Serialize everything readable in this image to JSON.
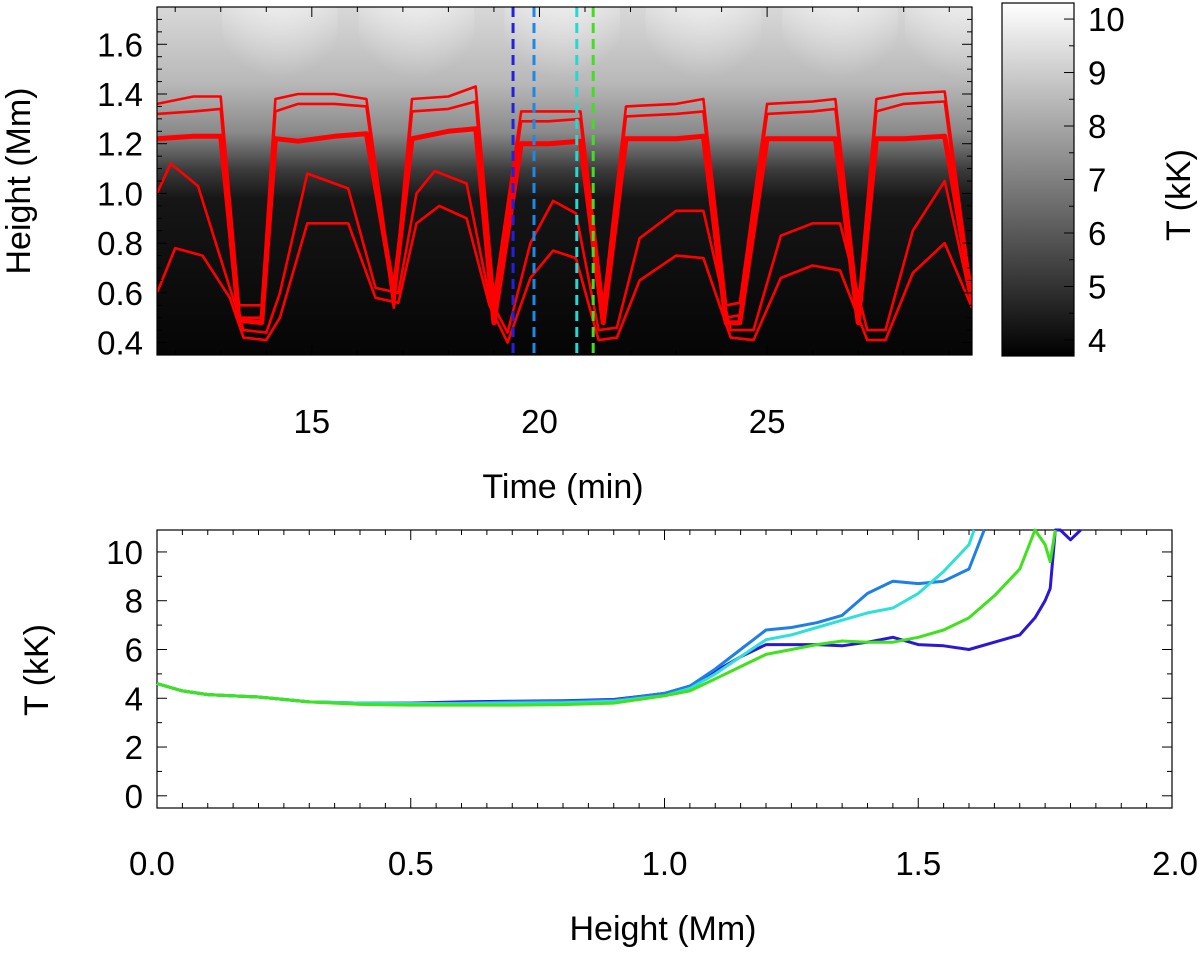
{
  "chart_data": [
    {
      "type": "heatmap",
      "xlabel": "Time (min)",
      "ylabel": "Height (Mm)",
      "xlim": [
        11.6,
        29.5
      ],
      "ylim": [
        0.35,
        1.75
      ],
      "x_ticks": [
        15,
        20,
        25
      ],
      "y_ticks": [
        0.4,
        0.6,
        0.8,
        1.0,
        1.2,
        1.4,
        1.6
      ],
      "colorbar": {
        "label": "T (kK)",
        "range": [
          3.7,
          10.3
        ],
        "ticks": [
          4,
          5,
          6,
          7,
          8,
          9,
          10
        ],
        "colormap": "grayscale"
      },
      "shock_period_min": 3.0,
      "shock_times_min": [
        13.0,
        16.0,
        19.2,
        22.3,
        25.3,
        28.0
      ],
      "vertical_markers": [
        {
          "x": 19.42,
          "color": "#2222dd"
        },
        {
          "x": 19.88,
          "color": "#1e88e5"
        },
        {
          "x": 20.82,
          "color": "#26d9d0"
        },
        {
          "x": 21.18,
          "color": "#44dd22"
        }
      ],
      "contour_color": "#ff0000",
      "contour_lines": [
        {
          "thick": false,
          "low": 0.41,
          "high": 1.37,
          "x": [
            11.6,
            12.4,
            13.0,
            13.4,
            13.9,
            14.2,
            14.7,
            15.5,
            16.2,
            16.8,
            17.2,
            18.0,
            18.6,
            19.0,
            19.6,
            20.2,
            20.9,
            21.4,
            21.9,
            23.0,
            23.6,
            24.1,
            24.4,
            25.0,
            26.0,
            26.5,
            27.0,
            27.4,
            28.0,
            28.9,
            29.5
          ],
          "y": [
            1.36,
            1.39,
            1.39,
            0.55,
            0.55,
            1.38,
            1.4,
            1.4,
            1.38,
            0.58,
            1.38,
            1.39,
            1.43,
            0.58,
            1.33,
            1.33,
            1.33,
            0.55,
            1.35,
            1.36,
            1.38,
            0.55,
            0.56,
            1.36,
            1.37,
            1.38,
            0.54,
            1.38,
            1.4,
            1.41,
            0.58
          ]
        },
        {
          "thick": false,
          "low": 0.46,
          "high": 1.33,
          "x": [
            11.6,
            12.4,
            13.0,
            13.4,
            13.9,
            14.2,
            14.7,
            15.5,
            16.2,
            16.8,
            17.2,
            18.0,
            18.6,
            19.0,
            19.6,
            20.2,
            20.9,
            21.4,
            21.9,
            23.0,
            23.6,
            24.1,
            24.4,
            25.0,
            26.0,
            26.5,
            27.0,
            27.4,
            28.0,
            28.9,
            29.5
          ],
          "y": [
            1.32,
            1.33,
            1.34,
            0.5,
            0.5,
            1.33,
            1.36,
            1.36,
            1.35,
            0.54,
            1.33,
            1.34,
            1.37,
            0.53,
            1.29,
            1.29,
            1.3,
            0.5,
            1.31,
            1.32,
            1.33,
            0.5,
            0.51,
            1.32,
            1.33,
            1.34,
            0.5,
            1.33,
            1.36,
            1.37,
            0.55
          ]
        },
        {
          "thick": true,
          "low": 0.48,
          "high": 1.22,
          "x": [
            11.6,
            12.4,
            13.0,
            13.4,
            13.9,
            14.2,
            14.7,
            15.5,
            16.2,
            16.8,
            17.2,
            18.0,
            18.6,
            19.0,
            19.6,
            20.2,
            20.9,
            21.4,
            21.9,
            23.0,
            23.6,
            24.1,
            24.4,
            25.0,
            26.0,
            26.5,
            27.0,
            27.4,
            28.0,
            28.9,
            29.5
          ],
          "y": [
            1.22,
            1.23,
            1.23,
            0.49,
            0.48,
            1.22,
            1.21,
            1.23,
            1.24,
            0.6,
            1.22,
            1.25,
            1.26,
            0.48,
            1.2,
            1.2,
            1.21,
            0.48,
            1.22,
            1.22,
            1.23,
            0.48,
            0.48,
            1.22,
            1.22,
            1.22,
            0.48,
            1.22,
            1.22,
            1.23,
            0.58
          ]
        },
        {
          "thick": false,
          "low": 0.44,
          "high": 1.05,
          "x": [
            11.6,
            11.9,
            12.5,
            13.2,
            13.5,
            14.0,
            14.3,
            14.9,
            15.8,
            16.4,
            16.9,
            17.3,
            17.7,
            18.4,
            18.9,
            19.3,
            19.8,
            20.3,
            20.8,
            21.3,
            21.7,
            22.2,
            23.0,
            23.6,
            24.2,
            24.7,
            25.3,
            26.0,
            26.6,
            27.2,
            27.6,
            28.2,
            28.9,
            29.5
          ],
          "y": [
            1.0,
            1.12,
            1.03,
            0.62,
            0.45,
            0.44,
            0.6,
            1.08,
            1.02,
            0.62,
            0.6,
            1.0,
            1.09,
            1.04,
            0.58,
            0.44,
            0.8,
            0.97,
            0.92,
            0.45,
            0.46,
            0.82,
            0.93,
            0.93,
            0.45,
            0.45,
            0.83,
            0.88,
            0.88,
            0.45,
            0.45,
            0.85,
            1.05,
            0.55
          ]
        },
        {
          "thick": false,
          "low": 0.4,
          "high": 0.93,
          "x": [
            11.6,
            12.0,
            12.6,
            13.2,
            13.5,
            14.0,
            14.3,
            14.9,
            15.8,
            16.4,
            16.9,
            17.3,
            17.8,
            18.4,
            18.9,
            19.3,
            19.8,
            20.3,
            20.8,
            21.3,
            21.7,
            22.2,
            23.0,
            23.6,
            24.2,
            24.7,
            25.3,
            26.0,
            26.6,
            27.2,
            27.6,
            28.2,
            28.9,
            29.5
          ],
          "y": [
            0.6,
            0.78,
            0.75,
            0.58,
            0.42,
            0.41,
            0.5,
            0.88,
            0.88,
            0.58,
            0.56,
            0.88,
            0.95,
            0.9,
            0.55,
            0.4,
            0.66,
            0.77,
            0.74,
            0.41,
            0.42,
            0.65,
            0.75,
            0.74,
            0.42,
            0.41,
            0.66,
            0.71,
            0.69,
            0.41,
            0.41,
            0.68,
            0.8,
            0.54
          ]
        }
      ]
    },
    {
      "type": "line",
      "xlabel": "Height (Mm)",
      "ylabel": "T (kK)",
      "xlim": [
        0.0,
        2.0
      ],
      "ylim": [
        -0.5,
        10.9
      ],
      "x_ticks": [
        0.0,
        0.5,
        1.0,
        1.5,
        2.0
      ],
      "x_tick_labels": [
        "0.0",
        "0.5",
        "1.0",
        "1.5",
        "2.0"
      ],
      "y_ticks": [
        0,
        2,
        4,
        6,
        8,
        10
      ],
      "series": [
        {
          "color": "#2b17d6",
          "x": [
            0.0,
            0.05,
            0.1,
            0.2,
            0.3,
            0.4,
            0.5,
            0.6,
            0.7,
            0.8,
            0.9,
            1.0,
            1.05,
            1.1,
            1.15,
            1.2,
            1.25,
            1.3,
            1.35,
            1.4,
            1.45,
            1.5,
            1.55,
            1.6,
            1.65,
            1.7,
            1.73,
            1.75,
            1.76,
            1.77,
            1.78,
            1.8,
            1.82
          ],
          "y": [
            4.6,
            4.3,
            4.15,
            4.05,
            3.85,
            3.8,
            3.8,
            3.85,
            3.88,
            3.9,
            3.95,
            4.2,
            4.5,
            5.1,
            5.7,
            6.2,
            6.2,
            6.2,
            6.15,
            6.3,
            6.5,
            6.2,
            6.15,
            6.0,
            6.3,
            6.6,
            7.3,
            8.0,
            8.5,
            10.9,
            10.9,
            10.5,
            10.9
          ]
        },
        {
          "color": "#1e7fe6",
          "x": [
            0.0,
            0.05,
            0.1,
            0.2,
            0.3,
            0.4,
            0.5,
            0.6,
            0.7,
            0.8,
            0.9,
            1.0,
            1.05,
            1.1,
            1.15,
            1.2,
            1.25,
            1.3,
            1.35,
            1.4,
            1.45,
            1.5,
            1.55,
            1.6,
            1.63
          ],
          "y": [
            4.6,
            4.3,
            4.15,
            4.05,
            3.85,
            3.8,
            3.78,
            3.8,
            3.85,
            3.88,
            3.92,
            4.2,
            4.5,
            5.2,
            6.0,
            6.8,
            6.9,
            7.1,
            7.4,
            8.3,
            8.8,
            8.7,
            8.8,
            9.3,
            10.9
          ]
        },
        {
          "color": "#2ee0d8",
          "x": [
            0.0,
            0.05,
            0.1,
            0.2,
            0.3,
            0.4,
            0.5,
            0.6,
            0.7,
            0.8,
            0.9,
            1.0,
            1.05,
            1.1,
            1.15,
            1.2,
            1.25,
            1.3,
            1.35,
            1.4,
            1.45,
            1.5,
            1.55,
            1.6,
            1.61
          ],
          "y": [
            4.6,
            4.3,
            4.15,
            4.05,
            3.85,
            3.8,
            3.78,
            3.78,
            3.8,
            3.82,
            3.88,
            4.1,
            4.4,
            5.0,
            5.7,
            6.4,
            6.6,
            6.9,
            7.2,
            7.5,
            7.7,
            8.3,
            9.2,
            10.3,
            10.9
          ]
        },
        {
          "color": "#3fe21c",
          "x": [
            0.0,
            0.05,
            0.1,
            0.2,
            0.3,
            0.4,
            0.5,
            0.6,
            0.7,
            0.8,
            0.9,
            1.0,
            1.05,
            1.1,
            1.15,
            1.2,
            1.25,
            1.3,
            1.35,
            1.4,
            1.45,
            1.5,
            1.55,
            1.6,
            1.65,
            1.7,
            1.73,
            1.75,
            1.76,
            1.77
          ],
          "y": [
            4.6,
            4.3,
            4.15,
            4.05,
            3.85,
            3.75,
            3.72,
            3.72,
            3.72,
            3.74,
            3.8,
            4.1,
            4.3,
            4.8,
            5.3,
            5.8,
            6.0,
            6.2,
            6.35,
            6.3,
            6.3,
            6.5,
            6.8,
            7.3,
            8.2,
            9.3,
            10.9,
            10.3,
            9.6,
            10.9
          ]
        }
      ]
    }
  ]
}
